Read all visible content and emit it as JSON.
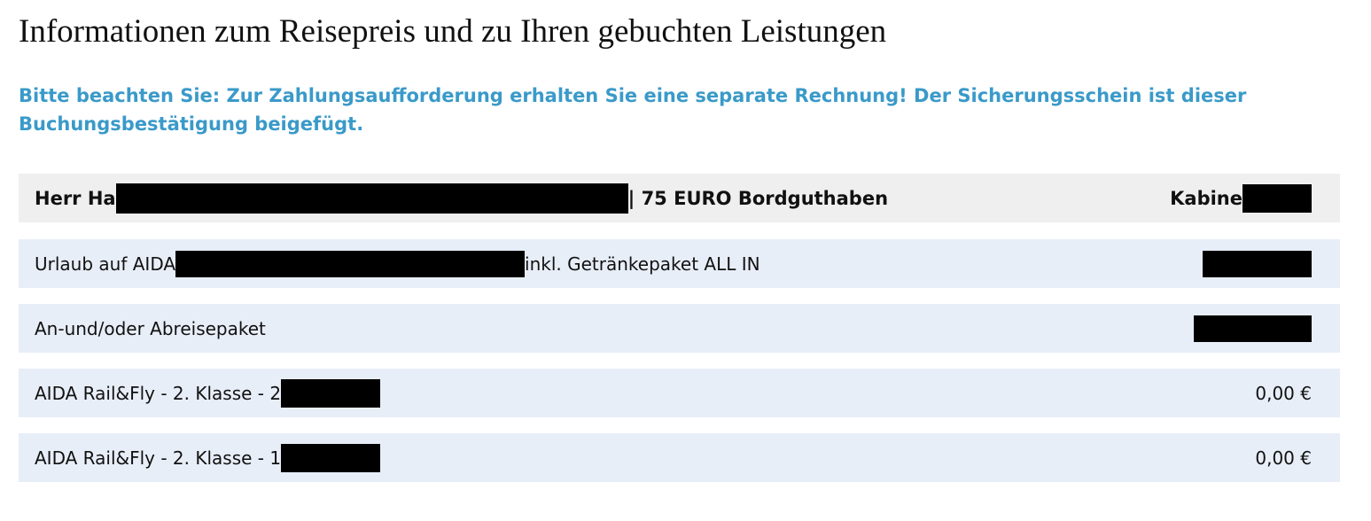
{
  "header": {
    "title": "Informationen zum Reisepreis und zu Ihren gebuchten Leistungen",
    "notice": "Bitte beachten Sie: Zur Zahlungsaufforderung erhalten Sie eine separate Rechnung! Der Sicherungsschein ist dieser Buchungsbestätigung beigefügt."
  },
  "table": {
    "head": {
      "name_start": "Herr Ha",
      "name_end": "| 75 EURO Bordguthaben",
      "cabin": "Kabine"
    },
    "rows": [
      {
        "label_start": "Urlaub auf AIDA",
        "label_end": "inkl. Getränkepaket ALL IN"
      },
      {
        "label_start": "An-und/oder Abreisepaket"
      },
      {
        "label_start": "AIDA Rail&Fly - 2. Klasse - 2",
        "price": "0,00 €"
      },
      {
        "label_start": "AIDA Rail&Fly - 2. Klasse - 1",
        "price": "0,00 €"
      }
    ]
  }
}
